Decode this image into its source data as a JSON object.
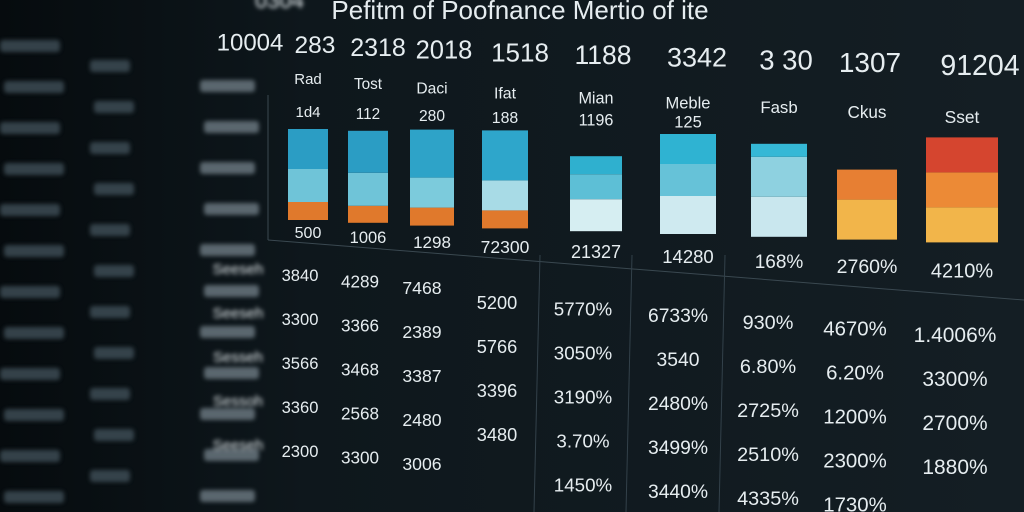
{
  "header": {
    "cut_text": "0304",
    "title": "Pefitm of Poofnance Mertio of ite"
  },
  "top_numbers": [
    "10004",
    "283",
    "2318",
    "2018",
    "1518",
    "1188",
    "3342",
    "3 30",
    "1307",
    "91204"
  ],
  "chart_data": {
    "type": "bar",
    "stacked": true,
    "categories": [
      "Rad",
      "Tost",
      "Daci",
      "Ifat",
      "Mian",
      "Meble",
      "Fasb",
      "Ckus",
      "Sset"
    ],
    "sublabels": [
      "1d4",
      "112",
      "280",
      "188",
      "1196",
      "125",
      null,
      null,
      null
    ],
    "captions": [
      "500",
      "1006",
      "1298",
      "72300",
      "21327",
      "14280",
      "168%",
      "2760%",
      "4210%"
    ],
    "ylim": [
      0,
      110
    ],
    "series": [
      {
        "colors": [
          "#e0792c",
          "#e0792c",
          "#e0792c",
          "#e0792c",
          "#d6eef2",
          "#cfeaf0",
          "#c9e7ee",
          "#f2b54a",
          "#f2b54a"
        ],
        "values": [
          18,
          17,
          18,
          18,
          32,
          38,
          40,
          40,
          35
        ]
      },
      {
        "colors": [
          "#6fc4d8",
          "#6fc4d8",
          "#7ccbdc",
          "#a8dbe6",
          "#5dbfd6",
          "#66c2d8",
          "#8ed1e0",
          "#e77f33",
          "#ec8a36"
        ],
        "values": [
          33,
          33,
          30,
          30,
          25,
          32,
          40,
          30,
          35
        ]
      },
      {
        "colors": [
          "#2b9dc4",
          "#2b9dc4",
          "#2ea3c8",
          "#2ea6cb",
          "#2fb0cf",
          "#2fb3d2",
          "#35b8d6",
          "#d5452f",
          "#d5452f"
        ],
        "values": [
          40,
          42,
          48,
          50,
          18,
          30,
          13,
          0,
          35
        ]
      }
    ]
  },
  "table": {
    "rows": [
      [
        "Seeseh",
        "3840",
        "4289",
        "7468",
        "5200",
        "5770%",
        "6733%",
        "930%",
        "4670%",
        "1.4006%"
      ],
      [
        "Seeseh",
        "3300",
        "3366",
        "2389",
        "5766",
        "3050%",
        "3540",
        "6.80%",
        "6.20%",
        "3300%"
      ],
      [
        "Sesseh",
        "3566",
        "3468",
        "3387",
        "3396",
        "3190%",
        "2480%",
        "2725%",
        "1200%",
        "2700%"
      ],
      [
        "Sessoh",
        "3360",
        "2568",
        "2480",
        "3480",
        "3.70%",
        "3499%",
        "2510%",
        "2300%",
        "1880%"
      ],
      [
        "Seeseh",
        "2300",
        "3300",
        "3006",
        "",
        "1450%",
        "3440%",
        "4335%",
        "1730%",
        ""
      ]
    ]
  }
}
